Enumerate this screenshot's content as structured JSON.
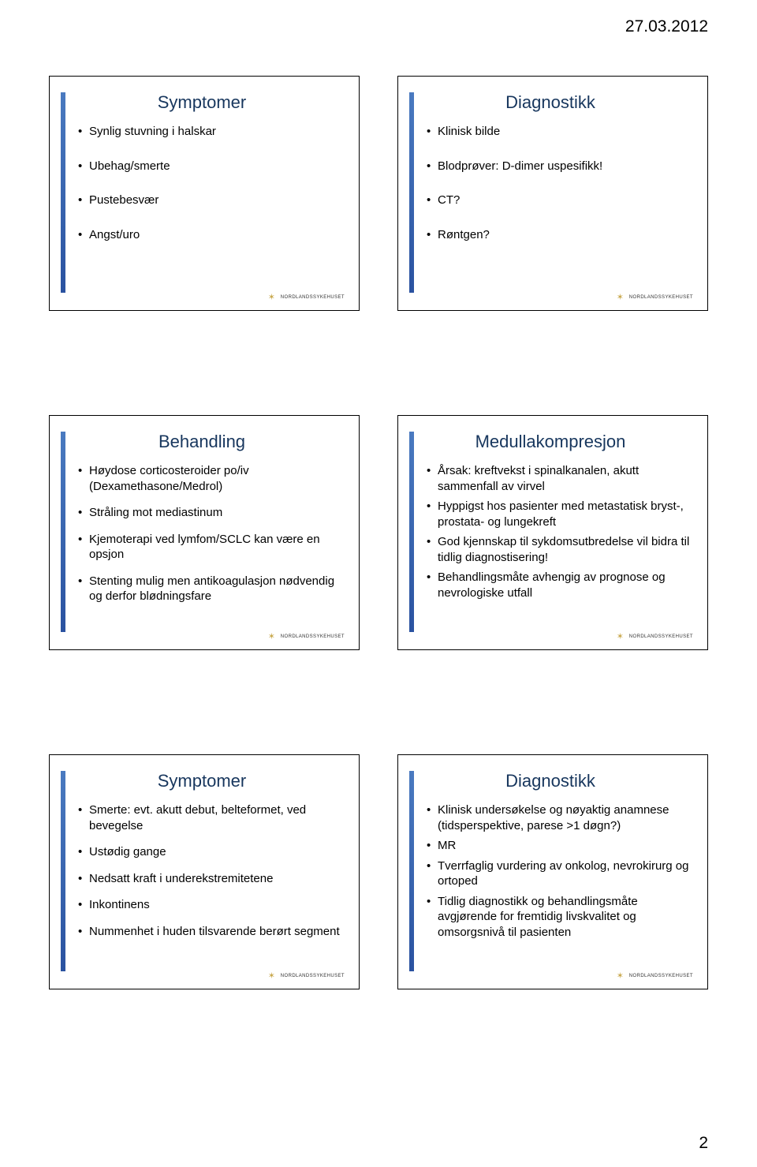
{
  "header_date": "27.03.2012",
  "page_number": "2",
  "logo_text": "NORDLANDSSYKEHUSET",
  "colors": {
    "title": "#17365d",
    "accent_bar_top": "#4a7ac0",
    "accent_bar_bottom": "#2a52a0",
    "text": "#000000",
    "background": "#ffffff",
    "logo_mark": "#c9a94f"
  },
  "slides": [
    {
      "title": "Symptomer",
      "title_centered": true,
      "spacing": "spaced",
      "items": [
        "Synlig stuvning i halskar",
        "Ubehag/smerte",
        "Pustebesvær",
        "Angst/uro"
      ]
    },
    {
      "title": "Diagnostikk",
      "title_centered": true,
      "spacing": "spaced",
      "items": [
        "Klinisk bilde",
        "Blodprøver: D-dimer uspesifikk!",
        "CT?",
        "Røntgen?"
      ]
    },
    {
      "title": "Behandling",
      "title_centered": true,
      "spacing": "semi-spaced",
      "items": [
        "Høydose corticosteroider po/iv (Dexamethasone/Medrol)",
        "Stråling mot mediastinum",
        "Kjemoterapi ved lymfom/SCLC kan være en opsjon",
        "Stenting mulig men antikoagulasjon nødvendig og derfor blødningsfare"
      ]
    },
    {
      "title": "Medullakompresjon",
      "title_centered": true,
      "spacing": "tight",
      "items": [
        "Årsak: kreftvekst i spinalkanalen, akutt sammenfall av virvel",
        "Hyppigst hos pasienter med metastatisk bryst-, prostata- og lungekreft",
        "God kjennskap til sykdomsutbredelse vil bidra til tidlig diagnostisering!",
        "Behandlingsmåte avhengig av prognose og nevrologiske utfall"
      ]
    },
    {
      "title": "Symptomer",
      "title_centered": true,
      "spacing": "semi-spaced",
      "items": [
        "Smerte: evt. akutt debut, belteformet, ved bevegelse",
        "Ustødig gange",
        "Nedsatt kraft i underekstremitetene",
        "Inkontinens",
        "Nummenhet i huden tilsvarende berørt segment"
      ]
    },
    {
      "title": "Diagnostikk",
      "title_centered": true,
      "spacing": "tight",
      "items": [
        "Klinisk undersøkelse og nøyaktig anamnese (tidsperspektive, parese >1 døgn?)",
        "MR",
        "Tverrfaglig vurdering av onkolog, nevrokirurg og ortoped",
        "Tidlig diagnostikk og behandlingsmåte avgjørende for fremtidig livskvalitet og omsorgsnivå til pasienten"
      ]
    }
  ]
}
